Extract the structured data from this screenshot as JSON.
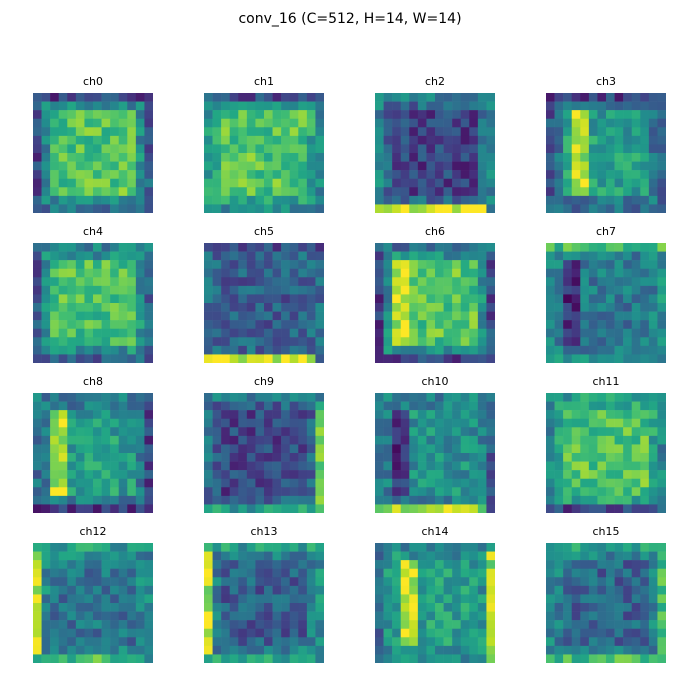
{
  "title": "conv_16 (C=512, H=14, W=14)",
  "chart_data": {
    "type": "heatmap",
    "title": "conv_16 (C=512, H=14, W=14)",
    "colormap": "viridis",
    "channels_shown": 16,
    "grid_shape": [
      4,
      4
    ],
    "H": 14,
    "W": 14,
    "panels": [
      {
        "label": "ch0"
      },
      {
        "label": "ch1"
      },
      {
        "label": "ch2"
      },
      {
        "label": "ch3"
      },
      {
        "label": "ch4"
      },
      {
        "label": "ch5"
      },
      {
        "label": "ch6"
      },
      {
        "label": "ch7"
      },
      {
        "label": "ch8"
      },
      {
        "label": "ch9"
      },
      {
        "label": "ch10"
      },
      {
        "label": "ch11"
      },
      {
        "label": "ch12"
      },
      {
        "label": "ch13"
      },
      {
        "label": "ch14"
      },
      {
        "label": "ch15"
      }
    ]
  }
}
